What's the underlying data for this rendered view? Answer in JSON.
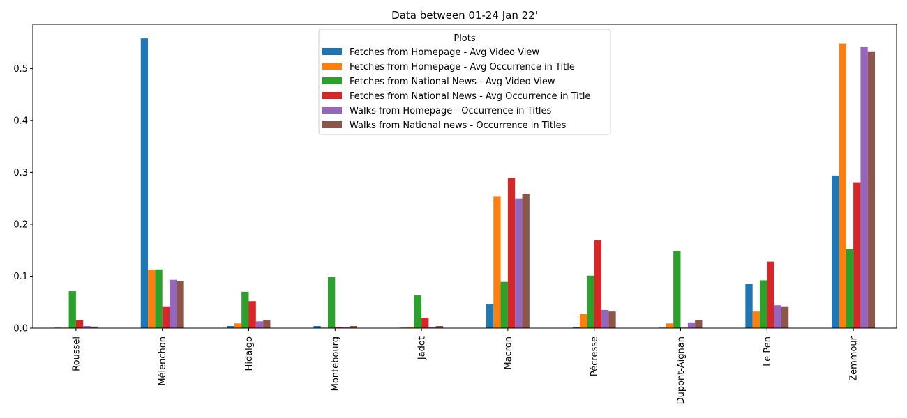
{
  "chart_data": {
    "type": "bar",
    "title": "Data between 01-24 Jan 22'",
    "xlabel": "",
    "ylabel": "",
    "ylim": [
      0,
      0.585
    ],
    "yticks": [
      0.0,
      0.1,
      0.2,
      0.3,
      0.4,
      0.5
    ],
    "yticks_text": [
      "0.0",
      "0.1",
      "0.2",
      "0.3",
      "0.4",
      "0.5"
    ],
    "grid": false,
    "legend": {
      "title": "Plots",
      "placement": "top-center"
    },
    "categories": [
      "Roussel",
      "Mélenchon",
      "Hidalgo",
      "Montebourg",
      "Jadot",
      "Macron",
      "Pécresse",
      "Dupont-Aignan",
      "Le Pen",
      "Zemmour"
    ],
    "series": [
      {
        "name": "Fetches from Homepage - Avg Video View",
        "color": "#1f77b4",
        "values": [
          0.001,
          0.558,
          0.004,
          0.004,
          0.001,
          0.046,
          0.002,
          0.001,
          0.085,
          0.294
        ]
      },
      {
        "name": "Fetches from Homepage - Avg Occurrence in Title",
        "color": "#ff7f0e",
        "values": [
          0.001,
          0.112,
          0.009,
          0.001,
          0.002,
          0.253,
          0.027,
          0.009,
          0.032,
          0.548
        ]
      },
      {
        "name": "Fetches from National News - Avg Video View",
        "color": "#2ca02c",
        "values": [
          0.071,
          0.113,
          0.07,
          0.098,
          0.063,
          0.089,
          0.101,
          0.149,
          0.092,
          0.152
        ]
      },
      {
        "name": "Fetches from National News - Avg Occurrence in Title",
        "color": "#d62728",
        "values": [
          0.015,
          0.042,
          0.052,
          0.002,
          0.02,
          0.289,
          0.169,
          0.001,
          0.128,
          0.281
        ]
      },
      {
        "name": "Walks from Homepage - Occurrence in Titles",
        "color": "#9467bd",
        "values": [
          0.004,
          0.093,
          0.013,
          0.002,
          0.002,
          0.25,
          0.035,
          0.011,
          0.044,
          0.542
        ]
      },
      {
        "name": "Walks from National news - Occurrence in Titles",
        "color": "#8c564b",
        "values": [
          0.003,
          0.09,
          0.015,
          0.004,
          0.004,
          0.259,
          0.032,
          0.015,
          0.042,
          0.533
        ]
      }
    ]
  }
}
